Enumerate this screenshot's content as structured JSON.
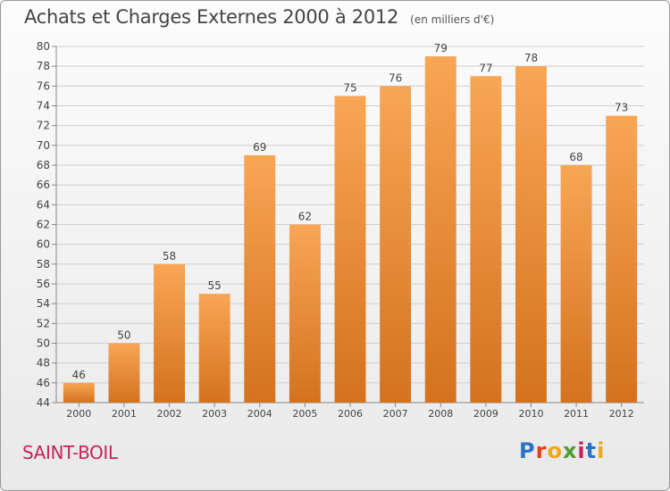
{
  "header": {
    "title": "Achats et Charges Externes 2000 à 2012",
    "subtitle": "(en milliers d'€)"
  },
  "footer": {
    "commune": "SAINT-BOIL",
    "logo": [
      "P",
      "r",
      "o",
      "x",
      "i",
      "t",
      "i"
    ]
  },
  "colors": {
    "bar_top": "#f8a655",
    "bar_bottom": "#d4721f",
    "grid": "#cfcfcf",
    "text": "#444444",
    "commune": "#c8235a"
  },
  "chart_data": {
    "type": "bar",
    "categories": [
      "2000",
      "2001",
      "2002",
      "2003",
      "2004",
      "2005",
      "2006",
      "2007",
      "2008",
      "2009",
      "2010",
      "2011",
      "2012"
    ],
    "values": [
      46,
      50,
      58,
      55,
      69,
      62,
      75,
      76,
      79,
      77,
      78,
      68,
      73
    ],
    "title": "Achats et Charges Externes 2000 à 2012",
    "subtitle": "(en milliers d'€)",
    "ylim": [
      44,
      80
    ],
    "yticks": [
      44,
      46,
      48,
      50,
      52,
      54,
      56,
      58,
      60,
      62,
      64,
      66,
      68,
      70,
      72,
      74,
      76,
      78,
      80
    ],
    "grid": true,
    "legend": "none"
  }
}
